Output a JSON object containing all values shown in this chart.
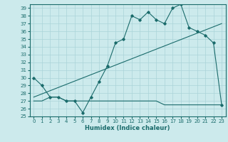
{
  "xlabel": "Humidex (Indice chaleur)",
  "bg_color": "#cceaec",
  "grid_color": "#aad4d8",
  "line_color": "#1a6b6b",
  "ylim": [
    25,
    39.5
  ],
  "xlim": [
    -0.5,
    23.5
  ],
  "yticks": [
    25,
    26,
    27,
    28,
    29,
    30,
    31,
    32,
    33,
    34,
    35,
    36,
    37,
    38,
    39
  ],
  "xticks": [
    0,
    1,
    2,
    3,
    4,
    5,
    6,
    7,
    8,
    9,
    10,
    11,
    12,
    13,
    14,
    15,
    16,
    17,
    18,
    19,
    20,
    21,
    22,
    23
  ],
  "curve1_x": [
    0,
    1,
    2,
    3,
    4,
    5,
    6,
    7,
    8,
    9,
    10,
    11,
    12,
    13,
    14,
    15,
    16,
    17,
    18,
    19,
    20,
    21,
    22,
    23
  ],
  "curve1_y": [
    30.0,
    29.0,
    27.5,
    27.5,
    27.0,
    27.0,
    25.5,
    27.5,
    29.5,
    31.5,
    34.5,
    35.0,
    38.0,
    37.5,
    38.5,
    37.5,
    37.0,
    39.0,
    39.5,
    36.5,
    36.0,
    35.5,
    34.5,
    26.5
  ],
  "curve2_x": [
    0,
    1,
    2,
    3,
    4,
    5,
    6,
    7,
    8,
    9,
    10,
    11,
    12,
    13,
    14,
    15,
    16,
    17,
    18,
    19,
    20,
    21,
    22,
    23
  ],
  "curve2_y": [
    27.0,
    27.0,
    27.5,
    27.5,
    27.0,
    27.0,
    27.0,
    27.0,
    27.0,
    27.0,
    27.0,
    27.0,
    27.0,
    27.0,
    27.0,
    27.0,
    26.5,
    26.5,
    26.5,
    26.5,
    26.5,
    26.5,
    26.5,
    26.5
  ],
  "line_x": [
    0,
    23
  ],
  "line_y": [
    27.5,
    37.0
  ]
}
